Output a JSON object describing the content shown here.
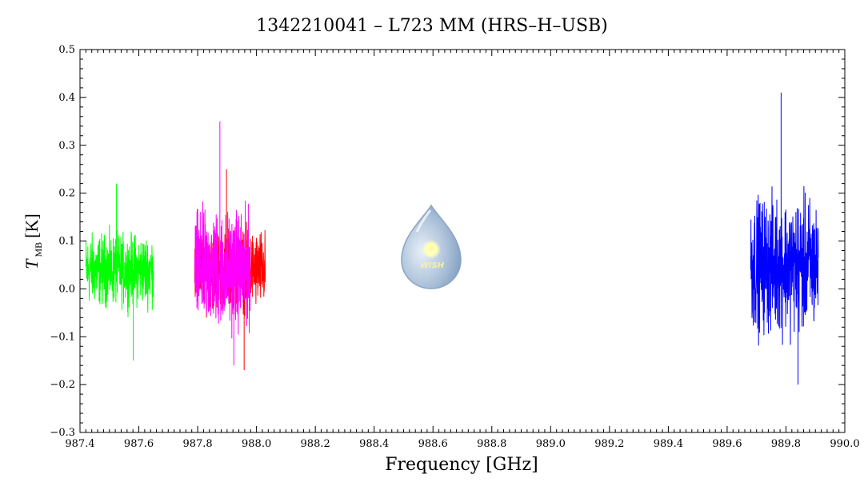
{
  "chart_data": {
    "type": "line",
    "title": "1342210041 – L723 MM (HRS–H–USB)",
    "xlabel": "Frequency [GHz]",
    "ylabel_main": "T",
    "ylabel_sub": "MB",
    "ylabel_unit": "[K]",
    "xlim": [
      987.4,
      990.0
    ],
    "ylim": [
      -0.3,
      0.5
    ],
    "x_ticks": [
      "987.4",
      "987.6",
      "987.8",
      "988.0",
      "988.2",
      "988.4",
      "988.6",
      "988.8",
      "989.0",
      "989.2",
      "989.4",
      "989.6",
      "989.8",
      "990.0"
    ],
    "y_ticks": [
      "−0.3",
      "−0.2",
      "−0.1",
      "0.0",
      "0.1",
      "0.2",
      "0.3",
      "0.4",
      "0.5"
    ],
    "grid": false,
    "series": [
      {
        "color": "#00ff00",
        "x_range": [
          987.42,
          987.65
        ],
        "mean": 0.04,
        "noise_range": [
          -0.15,
          0.22
        ]
      },
      {
        "color": "#ff0000",
        "x_range": [
          987.79,
          988.03
        ],
        "mean": 0.04,
        "noise_range": [
          -0.17,
          0.25
        ]
      },
      {
        "color": "#ff00ff",
        "x_range": [
          987.79,
          987.98
        ],
        "mean": 0.04,
        "noise_range": [
          -0.16,
          0.35
        ]
      },
      {
        "color": "#0000ff",
        "x_range": [
          989.68,
          989.91
        ],
        "mean": 0.05,
        "noise_range": [
          -0.2,
          0.41
        ]
      }
    ]
  },
  "logo": {
    "text": "WISH",
    "icon": "wish-droplet-logo"
  }
}
